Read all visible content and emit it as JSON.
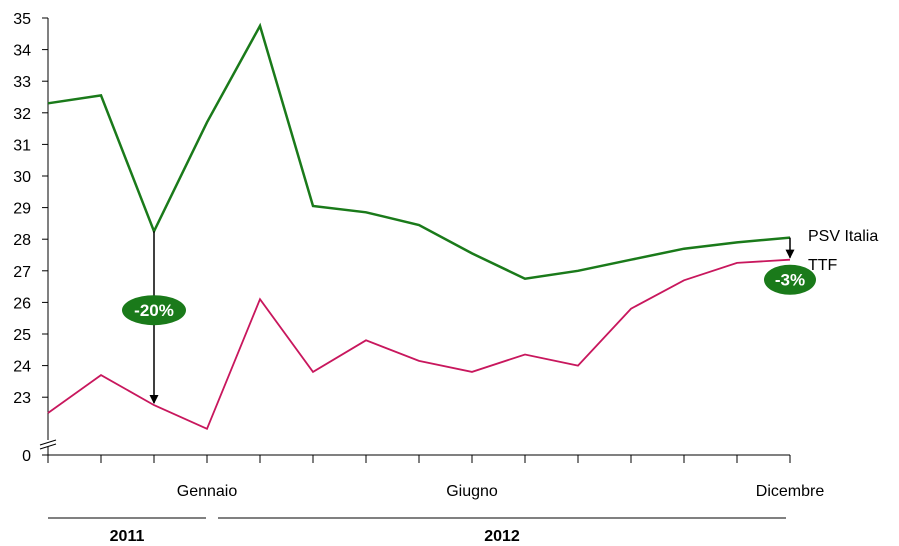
{
  "chart_data": {
    "type": "line",
    "ylim": [
      22,
      35
    ],
    "y_ticks": [
      "0",
      "23",
      "24",
      "25",
      "26",
      "27",
      "28",
      "29",
      "30",
      "31",
      "32",
      "33",
      "34",
      "35"
    ],
    "axis_break": true,
    "x_labels": [
      {
        "index": 3,
        "text": "Gennaio"
      },
      {
        "index": 8,
        "text": "Giugno"
      },
      {
        "index": 14,
        "text": "Dicembre"
      }
    ],
    "years": [
      {
        "text": "2011",
        "from": 0,
        "to": 3
      },
      {
        "text": "2012",
        "from": 3,
        "to": 14
      }
    ],
    "series": [
      {
        "name": "PSV Italia",
        "color": "#1a7a1a",
        "values": [
          32.3,
          32.55,
          28.25,
          31.7,
          34.75,
          29.05,
          28.85,
          28.45,
          27.55,
          26.75,
          27.0,
          27.35,
          27.7,
          27.9,
          28.05
        ]
      },
      {
        "name": "TTF",
        "color": "#c8175d",
        "values": [
          22.5,
          23.7,
          22.75,
          22.0,
          26.1,
          23.8,
          24.8,
          24.15,
          23.8,
          24.35,
          24.0,
          25.8,
          26.7,
          27.25,
          27.35
        ]
      }
    ],
    "annotations": [
      {
        "text": "-20%",
        "index": 2,
        "from": 28.25,
        "to": 22.75,
        "color": "#1a7a1a"
      },
      {
        "text": "-3%",
        "index": 14,
        "from": 28.05,
        "to": 27.35,
        "color": "#1a7a1a"
      }
    ]
  }
}
